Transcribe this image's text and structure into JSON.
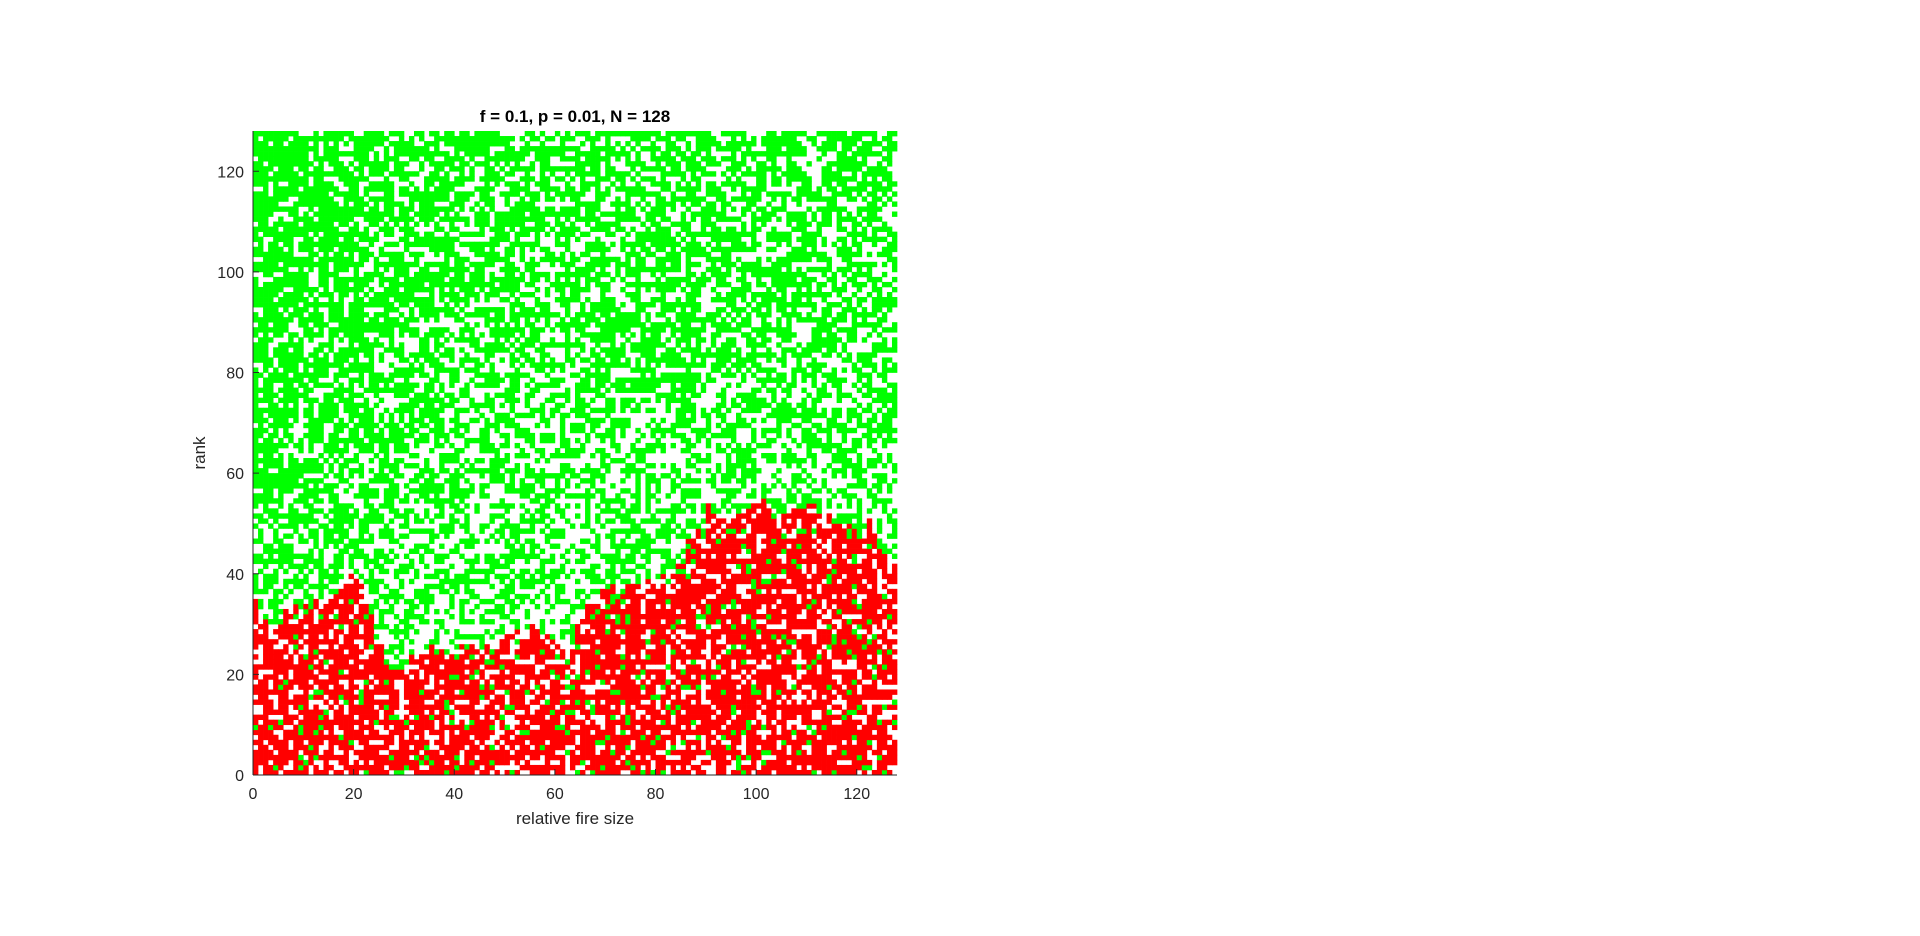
{
  "figure": {
    "background": "#ffffff"
  },
  "chart_data": {
    "type": "heatmap",
    "title": "f = 0.1, p = 0.01, N = 128",
    "xlabel": "relative fire size",
    "ylabel": "rank",
    "xlim": [
      0,
      128
    ],
    "ylim": [
      0,
      128
    ],
    "grid_size": 128,
    "xticks": [
      0,
      20,
      40,
      60,
      80,
      100,
      120
    ],
    "yticks": [
      0,
      20,
      40,
      60,
      80,
      100,
      120
    ],
    "xtick_labels": [
      "0",
      "20",
      "40",
      "60",
      "80",
      "100",
      "120"
    ],
    "ytick_labels": [
      "0",
      "20",
      "40",
      "60",
      "80",
      "100",
      "120"
    ],
    "grid": false,
    "legend": "none",
    "cell_states": [
      "empty",
      "tree",
      "fire"
    ],
    "colors": {
      "empty": "#ffffff",
      "tree": "#00ff00",
      "fire": "#ff0000",
      "axis": "#262626"
    },
    "green_density_by_rank": [
      [
        0,
        0.3
      ],
      [
        40,
        0.45
      ],
      [
        128,
        0.65
      ]
    ],
    "green_density_left_boost": 0.2,
    "fire_density": 0.68,
    "fire_front_height": [
      [
        0,
        34
      ],
      [
        3,
        28
      ],
      [
        6,
        31
      ],
      [
        10,
        33
      ],
      [
        14,
        34
      ],
      [
        18,
        38
      ],
      [
        21,
        40
      ],
      [
        23,
        33
      ],
      [
        25,
        26
      ],
      [
        27,
        22
      ],
      [
        30,
        22
      ],
      [
        33,
        23
      ],
      [
        36,
        24
      ],
      [
        40,
        24
      ],
      [
        44,
        25
      ],
      [
        48,
        25
      ],
      [
        52,
        27
      ],
      [
        56,
        28
      ],
      [
        60,
        27
      ],
      [
        63,
        26
      ],
      [
        65,
        29
      ],
      [
        67,
        34
      ],
      [
        70,
        36
      ],
      [
        74,
        36
      ],
      [
        77,
        37
      ],
      [
        80,
        38
      ],
      [
        83,
        40
      ],
      [
        85,
        42
      ],
      [
        87,
        46
      ],
      [
        89,
        48
      ],
      [
        91,
        53
      ],
      [
        93,
        50
      ],
      [
        95,
        50
      ],
      [
        97,
        51
      ],
      [
        99,
        54
      ],
      [
        102,
        53
      ],
      [
        105,
        52
      ],
      [
        108,
        52
      ],
      [
        111,
        52
      ],
      [
        114,
        51
      ],
      [
        117,
        50
      ],
      [
        120,
        48
      ],
      [
        123,
        49
      ],
      [
        125,
        44
      ],
      [
        128,
        42
      ]
    ]
  }
}
